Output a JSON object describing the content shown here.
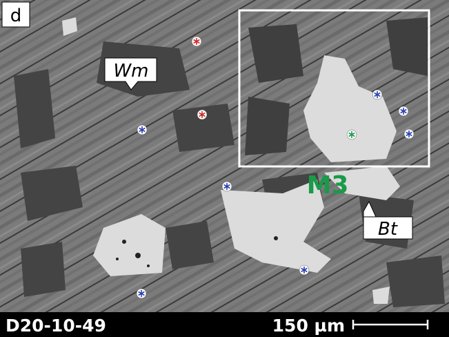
{
  "panel_label": "d",
  "labels": {
    "wm": "Wm",
    "m3": "M3",
    "bt": "Bt"
  },
  "footer": {
    "sample": "D20-10-49",
    "scale": "150 µm"
  }
}
